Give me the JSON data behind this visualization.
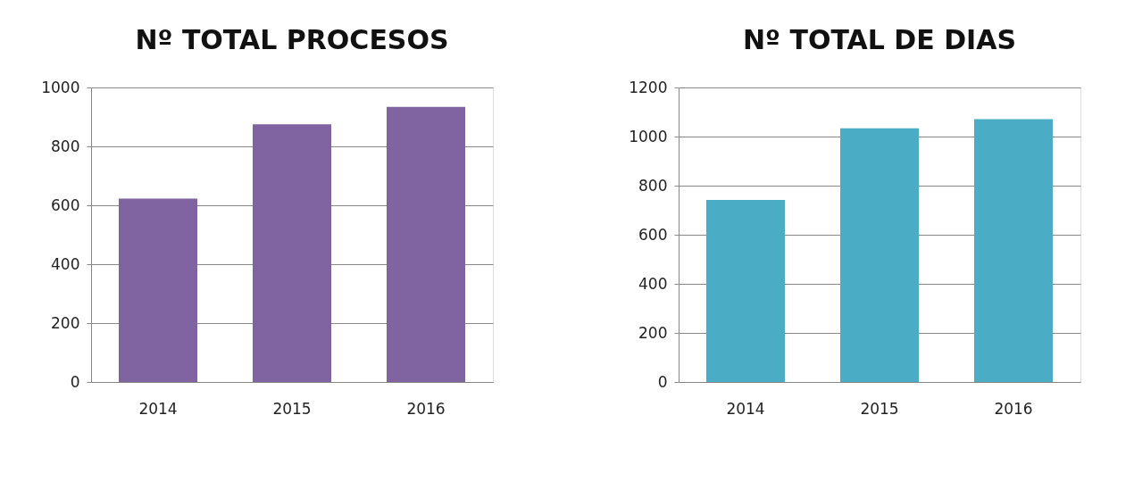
{
  "chart_data": [
    {
      "type": "bar",
      "title": "Nº TOTAL PROCESOS",
      "categories": [
        "2014",
        "2015",
        "2016"
      ],
      "values": [
        623,
        875,
        934
      ],
      "color": "#8064a2",
      "ylim": [
        0,
        1000
      ],
      "yticks": [
        0,
        200,
        400,
        600,
        800,
        1000
      ],
      "grid": "y"
    },
    {
      "type": "bar",
      "title": "Nº TOTAL DE DIAS",
      "categories": [
        "2014",
        "2015",
        "2016"
      ],
      "values": [
        742,
        1034,
        1071
      ],
      "color": "#4bacc6",
      "ylim": [
        0,
        1200
      ],
      "yticks": [
        0,
        200,
        400,
        600,
        800,
        1000,
        1200
      ],
      "grid": "y"
    }
  ]
}
